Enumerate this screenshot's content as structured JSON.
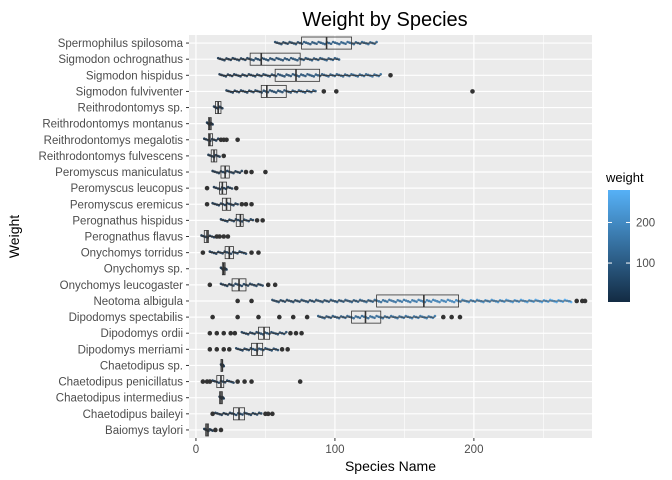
{
  "chart_data": {
    "type": "boxplot",
    "orientation": "horizontal",
    "title": "Weight by Species",
    "xlabel": "Species Name",
    "ylabel": "Weight",
    "xlim": [
      -5,
      285
    ],
    "x_ticks": [
      0,
      100,
      200
    ],
    "grid": true,
    "legend": {
      "title": "weight",
      "placement": "right",
      "type": "colorbar",
      "range": [
        4,
        280
      ],
      "ticks": [
        100,
        200
      ],
      "low_color": "#132b43",
      "high_color": "#56b1f7"
    },
    "categories": [
      "Baiomys taylori",
      "Chaetodipus baileyi",
      "Chaetodipus intermedius",
      "Chaetodipus penicillatus",
      "Chaetodipus sp.",
      "Dipodomys merriami",
      "Dipodomys ordii",
      "Dipodomys spectabilis",
      "Neotoma albigula",
      "Onychomys leucogaster",
      "Onychomys sp.",
      "Onychomys torridus",
      "Perognathus flavus",
      "Perognathus hispidus",
      "Peromyscus eremicus",
      "Peromyscus leucopus",
      "Peromyscus maniculatus",
      "Reithrodontomys fulvescens",
      "Reithrodontomys megalotis",
      "Reithrodontomys montanus",
      "Reithrodontomys sp.",
      "Sigmodon fulviventer",
      "Sigmodon hispidus",
      "Sigmodon ochrognathus",
      "Spermophilus spilosoma"
    ],
    "boxes": [
      {
        "min": 6,
        "q1": 7,
        "median": 8,
        "q3": 9,
        "max": 12,
        "outliers": [
          14,
          18
        ]
      },
      {
        "min": 14,
        "q1": 27,
        "median": 31,
        "q3": 35,
        "max": 47,
        "outliers": [
          12,
          50,
          52,
          55
        ]
      },
      {
        "min": 17,
        "q1": 17,
        "median": 18,
        "q3": 19,
        "max": 20,
        "outliers": []
      },
      {
        "min": 12,
        "q1": 15,
        "median": 18,
        "q3": 20,
        "max": 27,
        "outliers": [
          5,
          8,
          10,
          30,
          35,
          40,
          75
        ]
      },
      {
        "min": 18,
        "q1": 18,
        "median": 19,
        "q3": 19,
        "max": 20,
        "outliers": []
      },
      {
        "min": 29,
        "q1": 40,
        "median": 44,
        "q3": 48,
        "max": 59,
        "outliers": [
          10,
          15,
          20,
          24,
          62,
          66
        ]
      },
      {
        "min": 33,
        "q1": 45,
        "median": 49,
        "q3": 53,
        "max": 65,
        "outliers": [
          10,
          15,
          20,
          25,
          28,
          68,
          72,
          76
        ]
      },
      {
        "min": 88,
        "q1": 112,
        "median": 122,
        "q3": 133,
        "max": 172,
        "outliers": [
          12,
          30,
          45,
          60,
          70,
          80,
          178,
          184,
          190
        ]
      },
      {
        "min": 55,
        "q1": 130,
        "median": 164,
        "q3": 189,
        "max": 270,
        "outliers": [
          30,
          40,
          274,
          278,
          280
        ]
      },
      {
        "min": 18,
        "q1": 26,
        "median": 31,
        "q3": 36,
        "max": 48,
        "outliers": [
          10,
          52,
          57
        ]
      },
      {
        "min": 18,
        "q1": 19,
        "median": 20,
        "q3": 21,
        "max": 22,
        "outliers": []
      },
      {
        "min": 10,
        "q1": 21,
        "median": 24,
        "q3": 27,
        "max": 36,
        "outliers": [
          5,
          40,
          45
        ]
      },
      {
        "min": 4,
        "q1": 6,
        "median": 8,
        "q3": 9,
        "max": 13,
        "outliers": [
          15,
          17,
          20,
          23
        ]
      },
      {
        "min": 18,
        "q1": 29,
        "median": 32,
        "q3": 34,
        "max": 41,
        "outliers": [
          44,
          48
        ]
      },
      {
        "min": 12,
        "q1": 19,
        "median": 22,
        "q3": 25,
        "max": 30,
        "outliers": [
          8,
          33,
          36,
          40
        ]
      },
      {
        "min": 13,
        "q1": 17,
        "median": 19,
        "q3": 22,
        "max": 26,
        "outliers": [
          8,
          29
        ]
      },
      {
        "min": 12,
        "q1": 18,
        "median": 21,
        "q3": 24,
        "max": 33,
        "outliers": [
          36,
          40,
          50
        ]
      },
      {
        "min": 9,
        "q1": 11,
        "median": 13,
        "q3": 15,
        "max": 17,
        "outliers": [
          20
        ]
      },
      {
        "min": 6,
        "q1": 9,
        "median": 10,
        "q3": 12,
        "max": 16,
        "outliers": [
          18,
          20,
          22,
          30
        ]
      },
      {
        "min": 8,
        "q1": 9,
        "median": 10,
        "q3": 11,
        "max": 12,
        "outliers": []
      },
      {
        "min": 13,
        "q1": 14,
        "median": 16,
        "q3": 18,
        "max": 19,
        "outliers": []
      },
      {
        "min": 22,
        "q1": 47,
        "median": 51,
        "q3": 65,
        "max": 86,
        "outliers": [
          92,
          101,
          199
        ]
      },
      {
        "min": 17,
        "q1": 57,
        "median": 72,
        "q3": 89,
        "max": 133,
        "outliers": [
          140
        ]
      },
      {
        "min": 16,
        "q1": 39,
        "median": 47,
        "q3": 75,
        "max": 103,
        "outliers": []
      },
      {
        "min": 57,
        "q1": 76,
        "median": 94,
        "q3": 112,
        "max": 130,
        "outliers": []
      }
    ]
  }
}
